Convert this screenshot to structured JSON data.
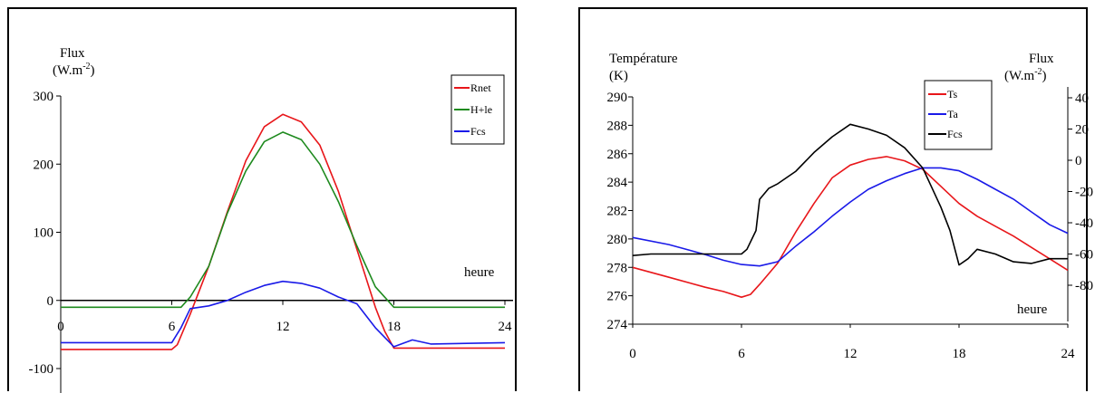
{
  "chart_data": [
    {
      "type": "line",
      "ylabel_line1": "Flux",
      "ylabel_unit": "(W.m",
      "ylabel_exp": "-2",
      "ylabel_close": ")",
      "xlabel": "heure",
      "xlim": [
        0,
        24
      ],
      "ylim": [
        -100,
        300
      ],
      "x_ticks": [
        "0",
        "6",
        "12",
        "18",
        "24"
      ],
      "y_ticks": [
        "300",
        "200",
        "100",
        "0",
        "-100"
      ],
      "legend_position": "top-right",
      "series": [
        {
          "name": "Rnet",
          "color": "#e8161a",
          "points": [
            [
              0,
              -72
            ],
            [
              6,
              -72
            ],
            [
              6.3,
              -65
            ],
            [
              7,
              -20
            ],
            [
              8,
              50
            ],
            [
              9,
              130
            ],
            [
              10,
              205
            ],
            [
              11,
              255
            ],
            [
              12,
              273
            ],
            [
              13,
              262
            ],
            [
              14,
              228
            ],
            [
              15,
              160
            ],
            [
              16,
              75
            ],
            [
              17,
              -10
            ],
            [
              17.5,
              -45
            ],
            [
              18,
              -70
            ],
            [
              20,
              -70
            ],
            [
              24,
              -70
            ]
          ]
        },
        {
          "name": "H+le",
          "color": "#1e8a1e",
          "points": [
            [
              0,
              -10
            ],
            [
              6.5,
              -10
            ],
            [
              7,
              5
            ],
            [
              8,
              50
            ],
            [
              9,
              128
            ],
            [
              10,
              190
            ],
            [
              11,
              233
            ],
            [
              12,
              247
            ],
            [
              13,
              236
            ],
            [
              14,
              200
            ],
            [
              15,
              145
            ],
            [
              16,
              80
            ],
            [
              17,
              20
            ],
            [
              18,
              -10
            ],
            [
              24,
              -10
            ]
          ]
        },
        {
          "name": "Fcs",
          "color": "#1a1ae8",
          "points": [
            [
              0,
              -62
            ],
            [
              6,
              -62
            ],
            [
              6.5,
              -40
            ],
            [
              7,
              -12
            ],
            [
              8,
              -8
            ],
            [
              9,
              0
            ],
            [
              10,
              12
            ],
            [
              11,
              22
            ],
            [
              12,
              28
            ],
            [
              13,
              25
            ],
            [
              14,
              18
            ],
            [
              15,
              5
            ],
            [
              16,
              -5
            ],
            [
              17,
              -40
            ],
            [
              18,
              -68
            ],
            [
              19,
              -58
            ],
            [
              20,
              -64
            ],
            [
              24,
              -62
            ]
          ]
        }
      ]
    },
    {
      "type": "line",
      "ylabel_left_1": "Température",
      "ylabel_left_2": "(K)",
      "ylabel_right_1": "Flux",
      "ylabel_right_unit": "(W.m",
      "ylabel_right_exp": "-2",
      "ylabel_right_close": ")",
      "xlabel": "heure",
      "xlim": [
        0,
        24
      ],
      "ylim_left": [
        274,
        290
      ],
      "ylim_right": [
        -80,
        40
      ],
      "x_ticks": [
        "0",
        "6",
        "12",
        "18",
        "24"
      ],
      "y_left_ticks": [
        "290",
        "288",
        "286",
        "284",
        "282",
        "280",
        "278",
        "276",
        "274"
      ],
      "y_right_ticks": [
        "40",
        "20",
        "0",
        "-20",
        "-40",
        "-60",
        "-80"
      ],
      "legend_position": "top-right",
      "series": [
        {
          "name": "Ts",
          "color": "#e8161a",
          "axis": "left",
          "points": [
            [
              0,
              278
            ],
            [
              2,
              277.3
            ],
            [
              4,
              276.6
            ],
            [
              5,
              276.3
            ],
            [
              6,
              275.9
            ],
            [
              6.5,
              276.1
            ],
            [
              7,
              276.8
            ],
            [
              8,
              278.3
            ],
            [
              9,
              280.5
            ],
            [
              10,
              282.5
            ],
            [
              11,
              284.3
            ],
            [
              12,
              285.2
            ],
            [
              13,
              285.6
            ],
            [
              14,
              285.8
            ],
            [
              15,
              285.5
            ],
            [
              16,
              284.9
            ],
            [
              17,
              283.7
            ],
            [
              18,
              282.5
            ],
            [
              19,
              281.6
            ],
            [
              20,
              280.9
            ],
            [
              21,
              280.2
            ],
            [
              22,
              279.4
            ],
            [
              23,
              278.6
            ],
            [
              24,
              277.8
            ]
          ]
        },
        {
          "name": "Ta",
          "color": "#1a1ae8",
          "axis": "left",
          "points": [
            [
              0,
              280.1
            ],
            [
              2,
              279.6
            ],
            [
              4,
              278.9
            ],
            [
              5,
              278.5
            ],
            [
              6,
              278.2
            ],
            [
              7,
              278.1
            ],
            [
              8,
              278.4
            ],
            [
              9,
              279.5
            ],
            [
              10,
              280.5
            ],
            [
              11,
              281.6
            ],
            [
              12,
              282.6
            ],
            [
              13,
              283.5
            ],
            [
              14,
              284.1
            ],
            [
              15,
              284.6
            ],
            [
              16,
              285
            ],
            [
              17,
              285
            ],
            [
              18,
              284.8
            ],
            [
              19,
              284.2
            ],
            [
              20,
              283.5
            ],
            [
              21,
              282.8
            ],
            [
              22,
              281.9
            ],
            [
              23,
              281
            ],
            [
              24,
              280.4
            ]
          ]
        },
        {
          "name": "Fcs",
          "color": "#000000",
          "axis": "right",
          "points": [
            [
              0,
              -61
            ],
            [
              1,
              -60
            ],
            [
              5,
              -60
            ],
            [
              6,
              -60
            ],
            [
              6.3,
              -57
            ],
            [
              6.8,
              -45
            ],
            [
              7,
              -25
            ],
            [
              7.5,
              -18
            ],
            [
              8,
              -15
            ],
            [
              9,
              -7
            ],
            [
              10,
              5
            ],
            [
              11,
              15
            ],
            [
              12,
              23
            ],
            [
              13,
              20
            ],
            [
              14,
              16
            ],
            [
              15,
              8
            ],
            [
              16,
              -5
            ],
            [
              17,
              -30
            ],
            [
              17.5,
              -45
            ],
            [
              18,
              -67
            ],
            [
              18.5,
              -63
            ],
            [
              19,
              -57
            ],
            [
              20,
              -60
            ],
            [
              21,
              -65
            ],
            [
              22,
              -66
            ],
            [
              23,
              -63
            ],
            [
              24,
              -63
            ]
          ]
        }
      ]
    }
  ]
}
